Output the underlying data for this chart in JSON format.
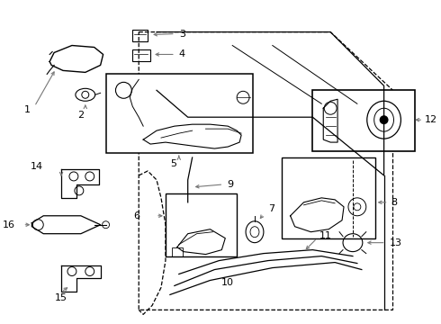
{
  "bg_color": "#ffffff",
  "line_color": "#000000",
  "gray_color": "#777777",
  "fig_width": 4.9,
  "fig_height": 3.6,
  "dpi": 100
}
